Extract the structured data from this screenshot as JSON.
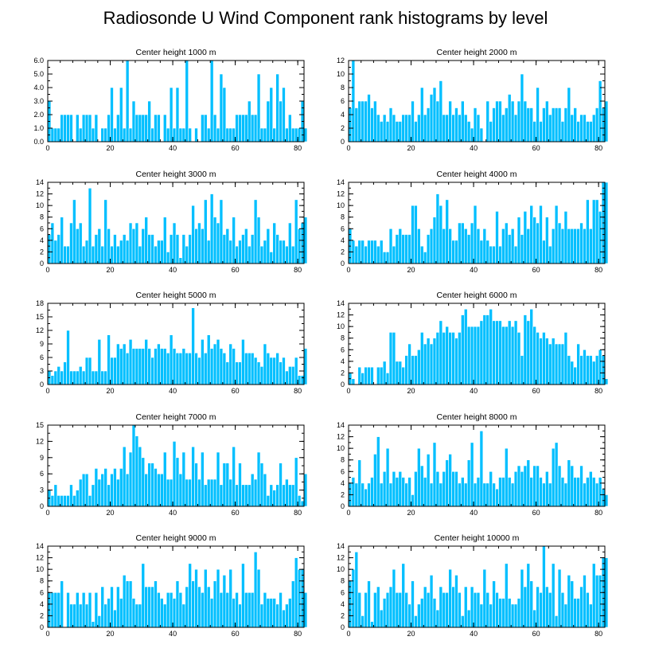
{
  "figure_title": "Radiosonde U Wind Component rank histograms by level",
  "chart_data": [
    {
      "type": "bar",
      "title": "Center height 1000 m",
      "xlabel": "",
      "ylabel": "",
      "xlim": [
        0,
        82
      ],
      "ylim": [
        0,
        6
      ],
      "xticks": [
        0,
        20,
        40,
        60,
        80
      ],
      "yticks": [
        0,
        1,
        2,
        3,
        4,
        5,
        6
      ],
      "ytick_labels": [
        "0.0",
        "1.0",
        "2.0",
        "3.0",
        "4.0",
        "5.0",
        "6.0"
      ],
      "values": [
        3,
        1,
        1,
        1,
        2,
        2,
        2,
        2,
        0,
        2,
        1,
        2,
        2,
        2,
        1,
        2,
        0,
        1,
        1,
        2,
        4,
        1,
        2,
        4,
        1,
        6,
        1,
        3,
        2,
        2,
        2,
        2,
        3,
        1,
        2,
        2,
        0,
        2,
        1,
        4,
        1,
        4,
        1,
        1,
        6,
        1,
        0,
        1,
        0,
        2,
        2,
        1,
        6,
        2,
        1,
        5,
        4,
        1,
        1,
        1,
        2,
        2,
        2,
        2,
        3,
        2,
        2,
        5,
        1,
        1,
        3,
        4,
        1,
        5,
        3,
        4,
        1,
        2,
        1,
        1,
        1,
        3,
        1
      ]
    },
    {
      "type": "bar",
      "title": "Center height 2000 m",
      "xlabel": "",
      "ylabel": "",
      "xlim": [
        0,
        82
      ],
      "ylim": [
        0,
        12
      ],
      "xticks": [
        0,
        20,
        40,
        60,
        80
      ],
      "yticks": [
        0,
        2,
        4,
        6,
        8,
        10,
        12
      ],
      "ytick_labels": [
        "0",
        "2",
        "4",
        "6",
        "8",
        "10",
        "12"
      ],
      "values": [
        5,
        12,
        5,
        6,
        6,
        6,
        7,
        5,
        6,
        4,
        3,
        4,
        3,
        5,
        4,
        3,
        3,
        4,
        4,
        4,
        6,
        3,
        4,
        8,
        4,
        5,
        7,
        8,
        6,
        9,
        4,
        4,
        6,
        4,
        5,
        4,
        6,
        4,
        3,
        2,
        5,
        4,
        2,
        0,
        6,
        3,
        5,
        6,
        6,
        4,
        5,
        7,
        6,
        4,
        6,
        10,
        6,
        5,
        5,
        3,
        8,
        3,
        5,
        6,
        4,
        5,
        5,
        5,
        3,
        5,
        8,
        4,
        5,
        3,
        4,
        4,
        3,
        3,
        4,
        5,
        9,
        5,
        6
      ]
    },
    {
      "type": "bar",
      "title": "Center height 3000 m",
      "xlabel": "",
      "ylabel": "",
      "xlim": [
        0,
        82
      ],
      "ylim": [
        0,
        14
      ],
      "xticks": [
        0,
        20,
        40,
        60,
        80
      ],
      "yticks": [
        0,
        2,
        4,
        6,
        8,
        10,
        12,
        14
      ],
      "ytick_labels": [
        "0",
        "2",
        "4",
        "6",
        "8",
        "10",
        "12",
        "14"
      ],
      "values": [
        5,
        7,
        4,
        5,
        8,
        3,
        3,
        7,
        11,
        6,
        7,
        3,
        4,
        13,
        3,
        5,
        6,
        3,
        11,
        6,
        3,
        5,
        3,
        4,
        5,
        4,
        7,
        6,
        7,
        3,
        6,
        8,
        5,
        5,
        3,
        4,
        4,
        8,
        2,
        5,
        7,
        5,
        1,
        5,
        3,
        5,
        10,
        6,
        7,
        6,
        11,
        4,
        12,
        8,
        7,
        11,
        5,
        6,
        4,
        8,
        3,
        4,
        5,
        6,
        3,
        5,
        11,
        8,
        3,
        4,
        6,
        2,
        7,
        5,
        4,
        4,
        3,
        7,
        3,
        11,
        6,
        7,
        8
      ]
    },
    {
      "type": "bar",
      "title": "Center height 4000 m",
      "xlabel": "",
      "ylabel": "",
      "xlim": [
        0,
        82
      ],
      "ylim": [
        0,
        14
      ],
      "xticks": [
        0,
        20,
        40,
        60,
        80
      ],
      "yticks": [
        0,
        2,
        4,
        6,
        8,
        10,
        12,
        14
      ],
      "ytick_labels": [
        "0",
        "2",
        "4",
        "6",
        "8",
        "10",
        "12",
        "14"
      ],
      "values": [
        6,
        4,
        3,
        4,
        4,
        3,
        4,
        4,
        4,
        3,
        4,
        2,
        2,
        6,
        3,
        5,
        6,
        5,
        5,
        5,
        10,
        10,
        6,
        3,
        2,
        5,
        6,
        8,
        12,
        10,
        6,
        11,
        6,
        4,
        4,
        7,
        7,
        6,
        5,
        7,
        10,
        6,
        4,
        6,
        4,
        3,
        3,
        9,
        3,
        6,
        7,
        5,
        6,
        3,
        8,
        5,
        9,
        6,
        10,
        8,
        7,
        10,
        4,
        8,
        3,
        6,
        10,
        7,
        6,
        9,
        6,
        6,
        6,
        6,
        7,
        6,
        11,
        6,
        11,
        11,
        9,
        14,
        14
      ]
    },
    {
      "type": "bar",
      "title": "Center height 5000 m",
      "xlabel": "",
      "ylabel": "",
      "xlim": [
        0,
        82
      ],
      "ylim": [
        0,
        18
      ],
      "xticks": [
        0,
        20,
        40,
        60,
        80
      ],
      "yticks": [
        0,
        3,
        6,
        9,
        12,
        15,
        18
      ],
      "ytick_labels": [
        "0",
        "3",
        "6",
        "9",
        "12",
        "15",
        "18"
      ],
      "values": [
        3,
        2,
        3,
        4,
        3,
        5,
        12,
        3,
        3,
        3,
        4,
        3,
        6,
        6,
        3,
        3,
        10,
        3,
        3,
        11,
        6,
        6,
        9,
        8,
        9,
        7,
        10,
        8,
        8,
        8,
        8,
        10,
        8,
        6,
        8,
        9,
        8,
        8,
        7,
        11,
        8,
        7,
        7,
        8,
        7,
        7,
        17,
        7,
        6,
        10,
        7,
        11,
        8,
        9,
        10,
        8,
        7,
        5,
        9,
        8,
        5,
        5,
        10,
        7,
        7,
        7,
        6,
        5,
        4,
        9,
        7,
        6,
        6,
        7,
        5,
        6,
        3,
        4,
        4,
        6,
        2,
        2,
        8
      ]
    },
    {
      "type": "bar",
      "title": "Center height 6000 m",
      "xlabel": "",
      "ylabel": "",
      "xlim": [
        0,
        82
      ],
      "ylim": [
        0,
        14
      ],
      "xticks": [
        0,
        20,
        40,
        60,
        80
      ],
      "yticks": [
        0,
        2,
        4,
        6,
        8,
        10,
        12,
        14
      ],
      "ytick_labels": [
        "0",
        "2",
        "4",
        "6",
        "8",
        "10",
        "12",
        "14"
      ],
      "values": [
        2,
        1,
        0,
        3,
        2,
        3,
        3,
        3,
        0,
        3,
        3,
        4,
        2,
        9,
        9,
        4,
        4,
        3,
        5,
        7,
        5,
        5,
        6,
        9,
        7,
        8,
        7,
        8,
        9,
        11,
        9,
        10,
        9,
        9,
        8,
        9,
        12,
        13,
        10,
        10,
        10,
        10,
        11,
        12,
        12,
        13,
        11,
        11,
        11,
        10,
        10,
        11,
        10,
        11,
        9,
        5,
        12,
        11,
        13,
        10,
        9,
        8,
        9,
        8,
        7,
        8,
        7,
        7,
        7,
        9,
        5,
        4,
        3,
        7,
        5,
        6,
        5,
        5,
        4,
        5,
        6,
        5,
        1
      ]
    },
    {
      "type": "bar",
      "title": "Center height 7000 m",
      "xlabel": "",
      "ylabel": "",
      "xlim": [
        0,
        82
      ],
      "ylim": [
        0,
        15
      ],
      "xticks": [
        0,
        20,
        40,
        60,
        80
      ],
      "yticks": [
        0,
        3,
        6,
        9,
        12,
        15
      ],
      "ytick_labels": [
        "0",
        "3",
        "6",
        "9",
        "12",
        "15"
      ],
      "values": [
        3,
        2,
        4,
        2,
        2,
        2,
        2,
        4,
        2,
        3,
        5,
        6,
        6,
        2,
        4,
        7,
        5,
        6,
        7,
        4,
        6,
        7,
        5,
        7,
        11,
        6,
        10,
        15,
        13,
        11,
        9,
        6,
        8,
        8,
        7,
        6,
        6,
        10,
        5,
        5,
        12,
        9,
        6,
        10,
        5,
        5,
        11,
        8,
        5,
        10,
        4,
        5,
        5,
        5,
        10,
        4,
        8,
        8,
        5,
        11,
        4,
        8,
        4,
        4,
        4,
        6,
        5,
        10,
        8,
        6,
        2,
        4,
        3,
        4,
        8,
        4,
        5,
        4,
        4,
        9,
        2,
        1,
        6
      ]
    },
    {
      "type": "bar",
      "title": "Center height 8000 m",
      "xlabel": "",
      "ylabel": "",
      "xlim": [
        0,
        82
      ],
      "ylim": [
        0,
        14
      ],
      "xticks": [
        0,
        20,
        40,
        60,
        80
      ],
      "yticks": [
        0,
        2,
        4,
        6,
        8,
        10,
        12,
        14
      ],
      "ytick_labels": [
        "0",
        "2",
        "4",
        "6",
        "8",
        "10",
        "12",
        "14"
      ],
      "values": [
        4,
        5,
        4,
        8,
        4,
        3,
        4,
        5,
        9,
        12,
        4,
        6,
        10,
        4,
        6,
        5,
        6,
        5,
        4,
        5,
        2,
        6,
        10,
        7,
        5,
        9,
        4,
        11,
        6,
        4,
        6,
        8,
        9,
        6,
        6,
        4,
        5,
        4,
        8,
        11,
        4,
        5,
        13,
        4,
        4,
        6,
        4,
        3,
        5,
        5,
        10,
        5,
        4,
        6,
        7,
        6,
        7,
        8,
        5,
        7,
        7,
        5,
        4,
        6,
        4,
        10,
        11,
        7,
        5,
        4,
        8,
        7,
        5,
        5,
        7,
        4,
        5,
        6,
        5,
        4,
        5,
        3,
        2
      ]
    },
    {
      "type": "bar",
      "title": "Center height 9000 m",
      "xlabel": "",
      "ylabel": "",
      "xlim": [
        0,
        82
      ],
      "ylim": [
        0,
        14
      ],
      "xticks": [
        0,
        20,
        40,
        60,
        80
      ],
      "yticks": [
        0,
        2,
        4,
        6,
        8,
        10,
        12,
        14
      ],
      "ytick_labels": [
        "0",
        "2",
        "4",
        "6",
        "8",
        "10",
        "12",
        "14"
      ],
      "values": [
        6,
        6,
        6,
        6,
        8,
        0,
        6,
        4,
        4,
        6,
        4,
        6,
        4,
        6,
        1,
        6,
        2,
        7,
        4,
        5,
        7,
        3,
        7,
        5,
        9,
        8,
        8,
        5,
        4,
        4,
        11,
        7,
        7,
        7,
        8,
        6,
        5,
        4,
        6,
        6,
        5,
        8,
        6,
        4,
        7,
        11,
        8,
        10,
        7,
        6,
        10,
        7,
        5,
        8,
        10,
        6,
        9,
        6,
        10,
        5,
        6,
        4,
        11,
        6,
        6,
        6,
        13,
        10,
        4,
        6,
        5,
        5,
        5,
        4,
        6,
        3,
        4,
        5,
        8,
        12,
        10,
        10,
        6
      ]
    },
    {
      "type": "bar",
      "title": "Center height 10000 m",
      "xlabel": "",
      "ylabel": "",
      "xlim": [
        0,
        82
      ],
      "ylim": [
        0,
        14
      ],
      "xticks": [
        0,
        20,
        40,
        60,
        80
      ],
      "yticks": [
        0,
        2,
        4,
        6,
        8,
        10,
        12,
        14
      ],
      "ytick_labels": [
        "0",
        "2",
        "4",
        "6",
        "8",
        "10",
        "12",
        "14"
      ],
      "values": [
        8,
        10,
        13,
        6,
        2,
        6,
        8,
        1,
        6,
        7,
        3,
        5,
        6,
        7,
        10,
        6,
        6,
        11,
        6,
        4,
        8,
        2,
        4,
        5,
        7,
        6,
        9,
        5,
        3,
        7,
        6,
        6,
        10,
        7,
        9,
        6,
        2,
        7,
        3,
        7,
        6,
        6,
        4,
        10,
        6,
        4,
        8,
        6,
        5,
        5,
        11,
        5,
        4,
        4,
        5,
        10,
        7,
        11,
        8,
        3,
        7,
        6,
        14,
        7,
        6,
        11,
        2,
        10,
        6,
        4,
        9,
        8,
        5,
        5,
        7,
        9,
        6,
        4,
        11,
        9,
        9,
        12,
        12
      ]
    }
  ]
}
